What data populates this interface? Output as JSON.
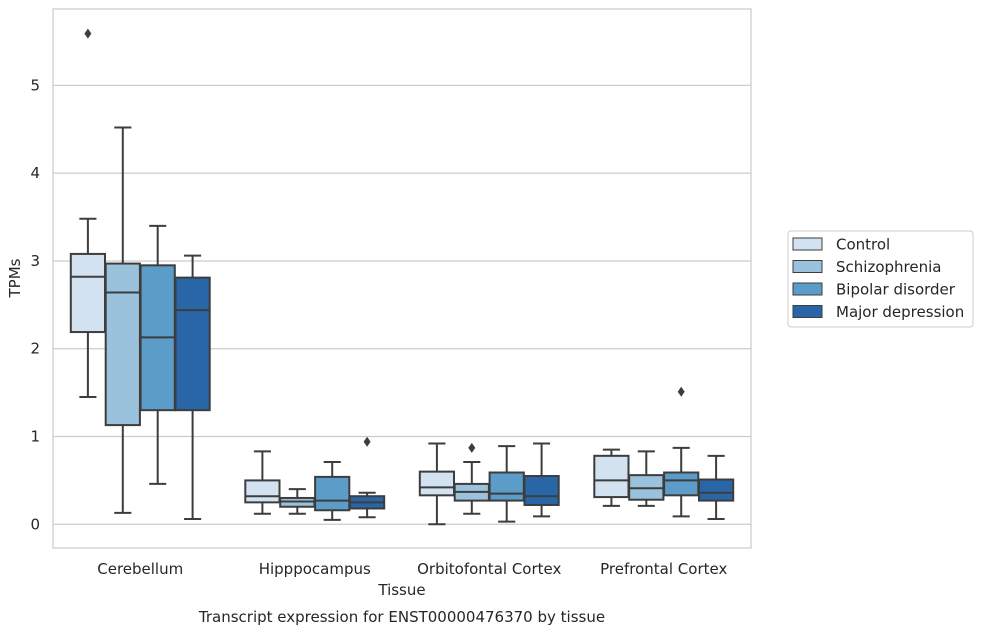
{
  "caption": "Transcript expression for ENST00000476370 by tissue",
  "chart_data": {
    "type": "box",
    "xlabel": "Tissue",
    "ylabel": "TPMs",
    "ylim": [
      -0.27,
      5.87
    ],
    "yticks": [
      0,
      1,
      2,
      3,
      4,
      5
    ],
    "grid": "horizontal",
    "legend_position": "right",
    "categories": [
      "Cerebellum",
      "Hipppocampus",
      "Orbitofontal Cortex",
      "Prefrontal Cortex"
    ],
    "series": [
      {
        "name": "Control",
        "color": "#d2e2f0",
        "boxes": [
          {
            "whisker_low": 1.45,
            "q1": 2.19,
            "median": 2.82,
            "q3": 3.08,
            "whisker_high": 3.48,
            "outliers": [
              5.59
            ]
          },
          {
            "whisker_low": 0.12,
            "q1": 0.25,
            "median": 0.32,
            "q3": 0.5,
            "whisker_high": 0.83,
            "outliers": []
          },
          {
            "whisker_low": 0.0,
            "q1": 0.33,
            "median": 0.42,
            "q3": 0.6,
            "whisker_high": 0.92,
            "outliers": []
          },
          {
            "whisker_low": 0.21,
            "q1": 0.31,
            "median": 0.5,
            "q3": 0.78,
            "whisker_high": 0.85,
            "outliers": []
          }
        ]
      },
      {
        "name": "Schizophrenia",
        "color": "#9bc2dd",
        "boxes": [
          {
            "whisker_low": 0.13,
            "q1": 1.13,
            "median": 2.64,
            "q3": 2.97,
            "whisker_high": 4.52,
            "outliers": []
          },
          {
            "whisker_low": 0.12,
            "q1": 0.2,
            "median": 0.26,
            "q3": 0.3,
            "whisker_high": 0.4,
            "outliers": []
          },
          {
            "whisker_low": 0.12,
            "q1": 0.27,
            "median": 0.37,
            "q3": 0.46,
            "whisker_high": 0.71,
            "outliers": [
              0.87
            ]
          },
          {
            "whisker_low": 0.21,
            "q1": 0.28,
            "median": 0.41,
            "q3": 0.56,
            "whisker_high": 0.83,
            "outliers": []
          }
        ]
      },
      {
        "name": "Bipolar disorder",
        "color": "#5b9cc8",
        "boxes": [
          {
            "whisker_low": 0.46,
            "q1": 1.3,
            "median": 2.13,
            "q3": 2.95,
            "whisker_high": 3.4,
            "outliers": []
          },
          {
            "whisker_low": 0.05,
            "q1": 0.16,
            "median": 0.27,
            "q3": 0.54,
            "whisker_high": 0.71,
            "outliers": []
          },
          {
            "whisker_low": 0.03,
            "q1": 0.27,
            "median": 0.35,
            "q3": 0.59,
            "whisker_high": 0.89,
            "outliers": []
          },
          {
            "whisker_low": 0.09,
            "q1": 0.33,
            "median": 0.5,
            "q3": 0.59,
            "whisker_high": 0.87,
            "outliers": [
              1.51
            ]
          }
        ]
      },
      {
        "name": "Major depression",
        "color": "#2966a8",
        "boxes": [
          {
            "whisker_low": 0.06,
            "q1": 1.3,
            "median": 2.44,
            "q3": 2.81,
            "whisker_high": 3.06,
            "outliers": []
          },
          {
            "whisker_low": 0.08,
            "q1": 0.18,
            "median": 0.25,
            "q3": 0.32,
            "whisker_high": 0.36,
            "outliers": [
              0.94
            ]
          },
          {
            "whisker_low": 0.09,
            "q1": 0.22,
            "median": 0.32,
            "q3": 0.55,
            "whisker_high": 0.92,
            "outliers": []
          },
          {
            "whisker_low": 0.06,
            "q1": 0.27,
            "median": 0.36,
            "q3": 0.51,
            "whisker_high": 0.78,
            "outliers": []
          }
        ]
      }
    ]
  }
}
